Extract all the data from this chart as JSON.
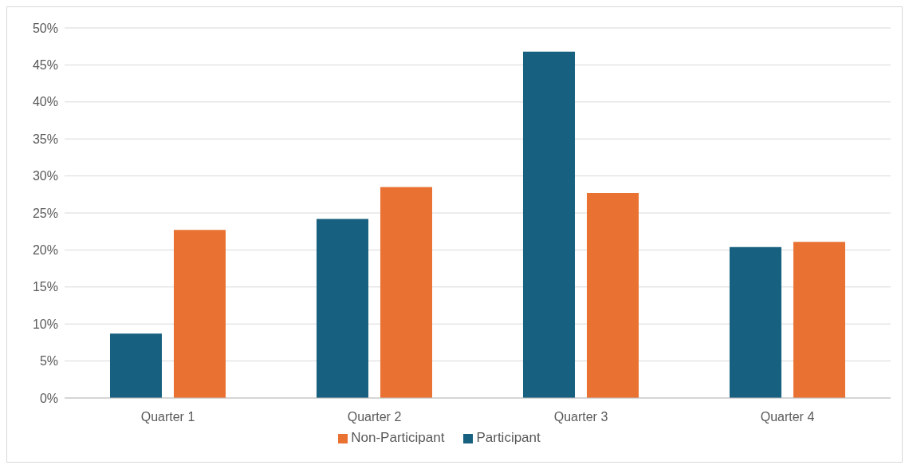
{
  "chart_data": {
    "type": "bar",
    "categories": [
      "Quarter 1",
      "Quarter 2",
      "Quarter 3",
      "Quarter 4"
    ],
    "series": [
      {
        "name": "Participant",
        "color": "#17607f",
        "values": [
          8.7,
          24.2,
          46.8,
          20.4
        ]
      },
      {
        "name": "Non-Participant",
        "color": "#e97132",
        "values": [
          22.7,
          28.5,
          27.7,
          21.1
        ]
      }
    ],
    "ylim": [
      0,
      50
    ],
    "yticks": [
      {
        "value": 0,
        "label": "0%"
      },
      {
        "value": 5,
        "label": "5%"
      },
      {
        "value": 10,
        "label": "10%"
      },
      {
        "value": 15,
        "label": "15%"
      },
      {
        "value": 20,
        "label": "20%"
      },
      {
        "value": 25,
        "label": "25%"
      },
      {
        "value": 30,
        "label": "30%"
      },
      {
        "value": 35,
        "label": "35%"
      },
      {
        "value": 40,
        "label": "40%"
      },
      {
        "value": 45,
        "label": "45%"
      },
      {
        "value": 50,
        "label": "50%"
      }
    ],
    "grid": "y",
    "legend": "bottom"
  }
}
